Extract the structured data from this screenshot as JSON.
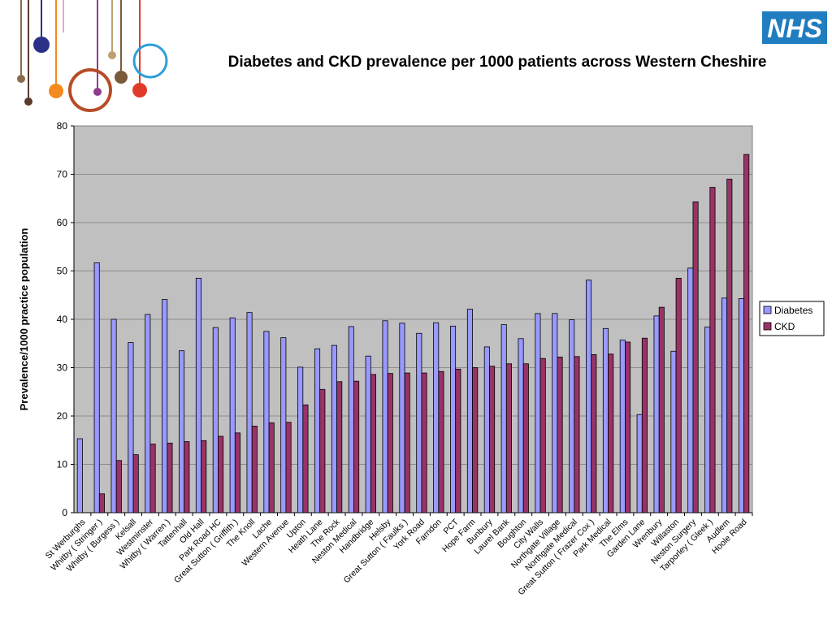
{
  "slide": {
    "title": "Diabetes and CKD prevalence per 1000 patients across Western Cheshire",
    "logo_text": "NHS",
    "logo_color": "#1f7dc0"
  },
  "decor_colors": [
    "#8a6a4a",
    "#2b2f86",
    "#f58a1f",
    "#e5a8d6",
    "#b74c27",
    "#8e3a8e",
    "#7a5a3a",
    "#c0a070",
    "#e23a2a",
    "#2e9fd8",
    "#5a3a2a"
  ],
  "chart_data": {
    "type": "bar",
    "title": "",
    "xlabel": "",
    "ylabel": "Prevalence/1000 practice population",
    "ylim": [
      0,
      80
    ],
    "yticks": [
      0,
      10,
      20,
      30,
      40,
      50,
      60,
      70,
      80
    ],
    "grid": true,
    "legend_position": "right",
    "plot_background": "#c0c0c0",
    "categories": [
      "St Werburghs",
      "Whitby ( Stringer )",
      "Whitby ( Burgess )",
      "Kelsall",
      "Westminster",
      "Whitby ( Warren )",
      "Tattenhall",
      "Old Hall",
      "Park Road HC",
      "Great Sutton ( Griffith )",
      "The Knoll",
      "Lache",
      "Western Avenue",
      "Upton",
      "Heath Lane",
      "The Rock",
      "Neston Medical",
      "Handbridge",
      "Helsby",
      "Great Sutton ( Faulks )",
      "York Road",
      "Farndon",
      "PCT",
      "Hope Farm",
      "Bunbury",
      "Laurel Bank",
      "Boughton",
      "City Walls",
      "Northgate Village",
      "Northgate Medical",
      "Great Sutton ( Frazer Cox )",
      "Park Medical",
      "The Elms",
      "Garden Lane",
      "Wrenbury",
      "Willaston",
      "Neston Surgery",
      "Tarporley ( Gleek )",
      "Audlem",
      "Hoole Road"
    ],
    "series": [
      {
        "name": "Diabetes",
        "color": "#9999ff",
        "values": [
          15.3,
          51.7,
          40.0,
          35.2,
          41.0,
          44.1,
          33.5,
          48.5,
          38.3,
          40.3,
          41.4,
          37.5,
          36.2,
          30.1,
          33.9,
          34.6,
          38.5,
          32.4,
          39.7,
          39.2,
          37.1,
          39.3,
          38.6,
          42.1,
          34.3,
          38.9,
          36.0,
          41.2,
          41.2,
          39.9,
          48.1,
          38.1,
          35.7,
          20.3,
          40.7,
          33.4,
          50.6,
          38.4,
          44.4,
          44.3
        ]
      },
      {
        "name": "CKD",
        "color": "#993366",
        "values": [
          0,
          3.9,
          10.8,
          12.0,
          14.2,
          14.4,
          14.7,
          14.9,
          15.8,
          16.5,
          17.9,
          18.6,
          18.7,
          22.3,
          25.5,
          27.1,
          27.2,
          28.6,
          28.8,
          28.9,
          28.9,
          29.2,
          29.7,
          30.0,
          30.3,
          30.8,
          30.8,
          31.9,
          32.2,
          32.3,
          32.7,
          32.8,
          35.3,
          36.1,
          42.5,
          48.5,
          64.3,
          67.3,
          69.0,
          74.1
        ]
      }
    ]
  }
}
